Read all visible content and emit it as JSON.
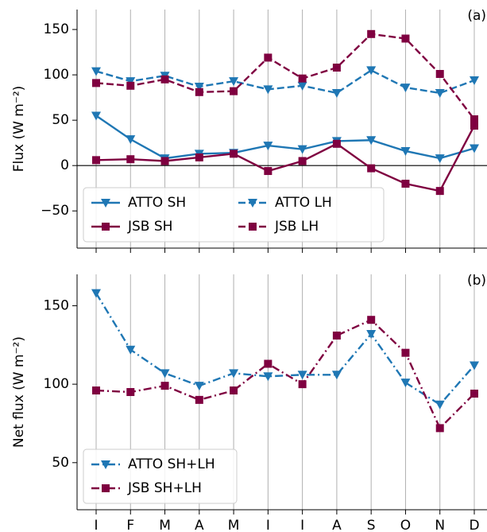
{
  "chart_data": [
    {
      "type": "line",
      "annotation": "(a)",
      "ylabel": "Flux (W m⁻²)",
      "ylim": [
        -91,
        172
      ],
      "yticks": [
        {
          "value": -50,
          "label": "−50"
        },
        0,
        50,
        100,
        150
      ],
      "hline": 0,
      "grid": "x",
      "legend": "lower left",
      "legend_columns": 2,
      "series": [
        {
          "name": "ATTO SH",
          "color": "#1f77b4",
          "style": "solid",
          "marker": "triangle",
          "values": [
            55,
            29,
            8,
            13,
            14,
            22,
            18,
            27,
            28,
            16,
            8,
            19
          ]
        },
        {
          "name": "JSB SH",
          "color": "#7f0040",
          "style": "solid",
          "marker": "square",
          "values": [
            6,
            7,
            5,
            9,
            13,
            -6,
            5,
            24,
            -3,
            -20,
            -28,
            44
          ]
        },
        {
          "name": "ATTO LH",
          "color": "#1f77b4",
          "style": "dashed",
          "marker": "triangle",
          "values": [
            104,
            93,
            99,
            87,
            93,
            84,
            88,
            80,
            105,
            86,
            80,
            94
          ]
        },
        {
          "name": "JSB LH",
          "color": "#7f0040",
          "style": "dashed",
          "marker": "square",
          "values": [
            91,
            88,
            95,
            81,
            82,
            119,
            96,
            108,
            145,
            140,
            101,
            51
          ]
        }
      ]
    },
    {
      "type": "line",
      "annotation": "(b)",
      "ylabel": "Net flux (W m⁻²)",
      "categories": [
        "I",
        "F",
        "M",
        "A",
        "M",
        "I",
        "I",
        "A",
        "S",
        "O",
        "N",
        "D"
      ],
      "ylim": [
        20,
        170
      ],
      "yticks": [
        50,
        100,
        150
      ],
      "grid": "x",
      "legend": "lower left",
      "legend_columns": 1,
      "series": [
        {
          "name": "ATTO SH+LH",
          "color": "#1f77b4",
          "style": "dashdot",
          "marker": "triangle",
          "values": [
            158,
            122,
            107,
            99,
            107,
            105,
            106,
            106,
            132,
            101,
            87,
            112
          ]
        },
        {
          "name": "JSB SH+LH",
          "color": "#7f0040",
          "style": "dashdot",
          "marker": "square",
          "values": [
            96,
            95,
            99,
            90,
            96,
            113,
            100,
            131,
            141,
            120,
            72,
            94
          ]
        }
      ]
    }
  ]
}
